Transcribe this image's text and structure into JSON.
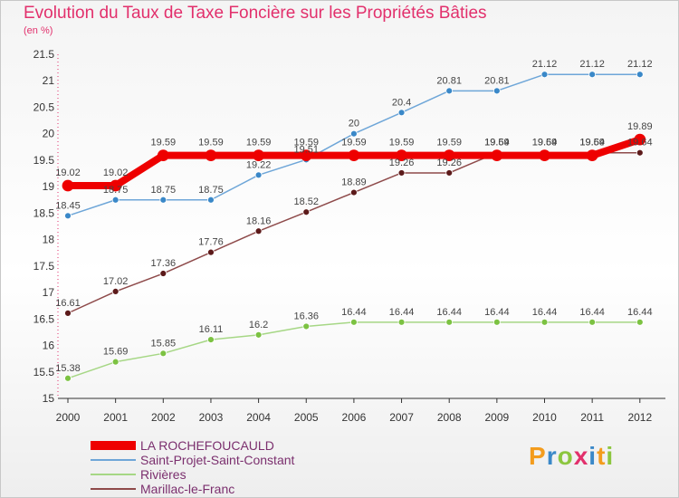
{
  "header": {
    "title": "Evolution du Taux de Taxe Foncière sur les Propriétés Bâties",
    "subtitle": "(en %)"
  },
  "logo": {
    "letters": [
      "P",
      "r",
      "o",
      "x",
      "i",
      "t",
      "i"
    ],
    "colors": [
      "#f39c1d",
      "#3a88c8",
      "#8cc63f",
      "#e2306c",
      "#3a88c8",
      "#f39c1d",
      "#8cc63f"
    ]
  },
  "chart_data": {
    "type": "line",
    "x": [
      "2000",
      "2001",
      "2002",
      "2003",
      "2004",
      "2005",
      "2006",
      "2007",
      "2008",
      "2009",
      "2010",
      "2011",
      "2012"
    ],
    "ylim": [
      15,
      21.5
    ],
    "yticks": [
      "15",
      "15.5",
      "16",
      "16.5",
      "17",
      "17.5",
      "18",
      "18.5",
      "19",
      "19.5",
      "20",
      "20.5",
      "21",
      "21.5"
    ],
    "grid": false,
    "legend_position": "bottom",
    "series": [
      {
        "name": "Saint-Projet-Saint-Constant",
        "color": "#6ea6d8",
        "marker": "#3a88c8",
        "width": 1.5,
        "radius": 3.5,
        "values": [
          18.45,
          18.75,
          18.75,
          18.75,
          19.22,
          19.51,
          20,
          20.4,
          20.81,
          20.81,
          21.12,
          21.12,
          21.12
        ],
        "labels": [
          "18.45",
          "18.75",
          "18.75",
          "18.75",
          "19.22",
          "19.51",
          "20",
          "20.4",
          "20.81",
          "20.81",
          "21.12",
          "21.12",
          "21.12"
        ]
      },
      {
        "name": "Rivières",
        "color": "#a6d785",
        "marker": "#7cc242",
        "width": 1.5,
        "radius": 3.5,
        "values": [
          15.38,
          15.69,
          15.85,
          16.11,
          16.2,
          16.36,
          16.44,
          16.44,
          16.44,
          16.44,
          16.44,
          16.44,
          16.44
        ],
        "labels": [
          "15.38",
          "15.69",
          "15.85",
          "16.11",
          "16.2",
          "16.36",
          "16.44",
          "16.44",
          "16.44",
          "16.44",
          "16.44",
          "16.44",
          "16.44"
        ]
      },
      {
        "name": "Marillac-le-Franc",
        "color": "#8e4a4a",
        "marker": "#5c1a1a",
        "width": 1.5,
        "radius": 3.5,
        "values": [
          16.61,
          17.02,
          17.36,
          17.76,
          18.16,
          18.52,
          18.89,
          19.26,
          19.26,
          19.64,
          19.64,
          19.64,
          19.64
        ],
        "labels": [
          "16.61",
          "17.02",
          "17.36",
          "17.76",
          "18.16",
          "18.52",
          "18.89",
          "19.26",
          "19.26",
          "19.64",
          "19.64",
          "19.64",
          "19.64"
        ]
      },
      {
        "name": "LA ROCHEFOUCAULD",
        "color": "#ee0000",
        "marker": "#ee0000",
        "width": 8,
        "radius": 6,
        "values": [
          19.02,
          19.02,
          19.59,
          19.59,
          19.59,
          19.59,
          19.59,
          19.59,
          19.59,
          19.59,
          19.59,
          19.59,
          19.89
        ],
        "labels": [
          "19.02",
          "19.02",
          "19.59",
          "19.59",
          "19.59",
          "19.59",
          "19.59",
          "19.59",
          "19.59",
          "19.59",
          "19.59",
          "19.59",
          "19.89"
        ]
      }
    ],
    "legend_order": [
      3,
      0,
      1,
      2
    ]
  }
}
